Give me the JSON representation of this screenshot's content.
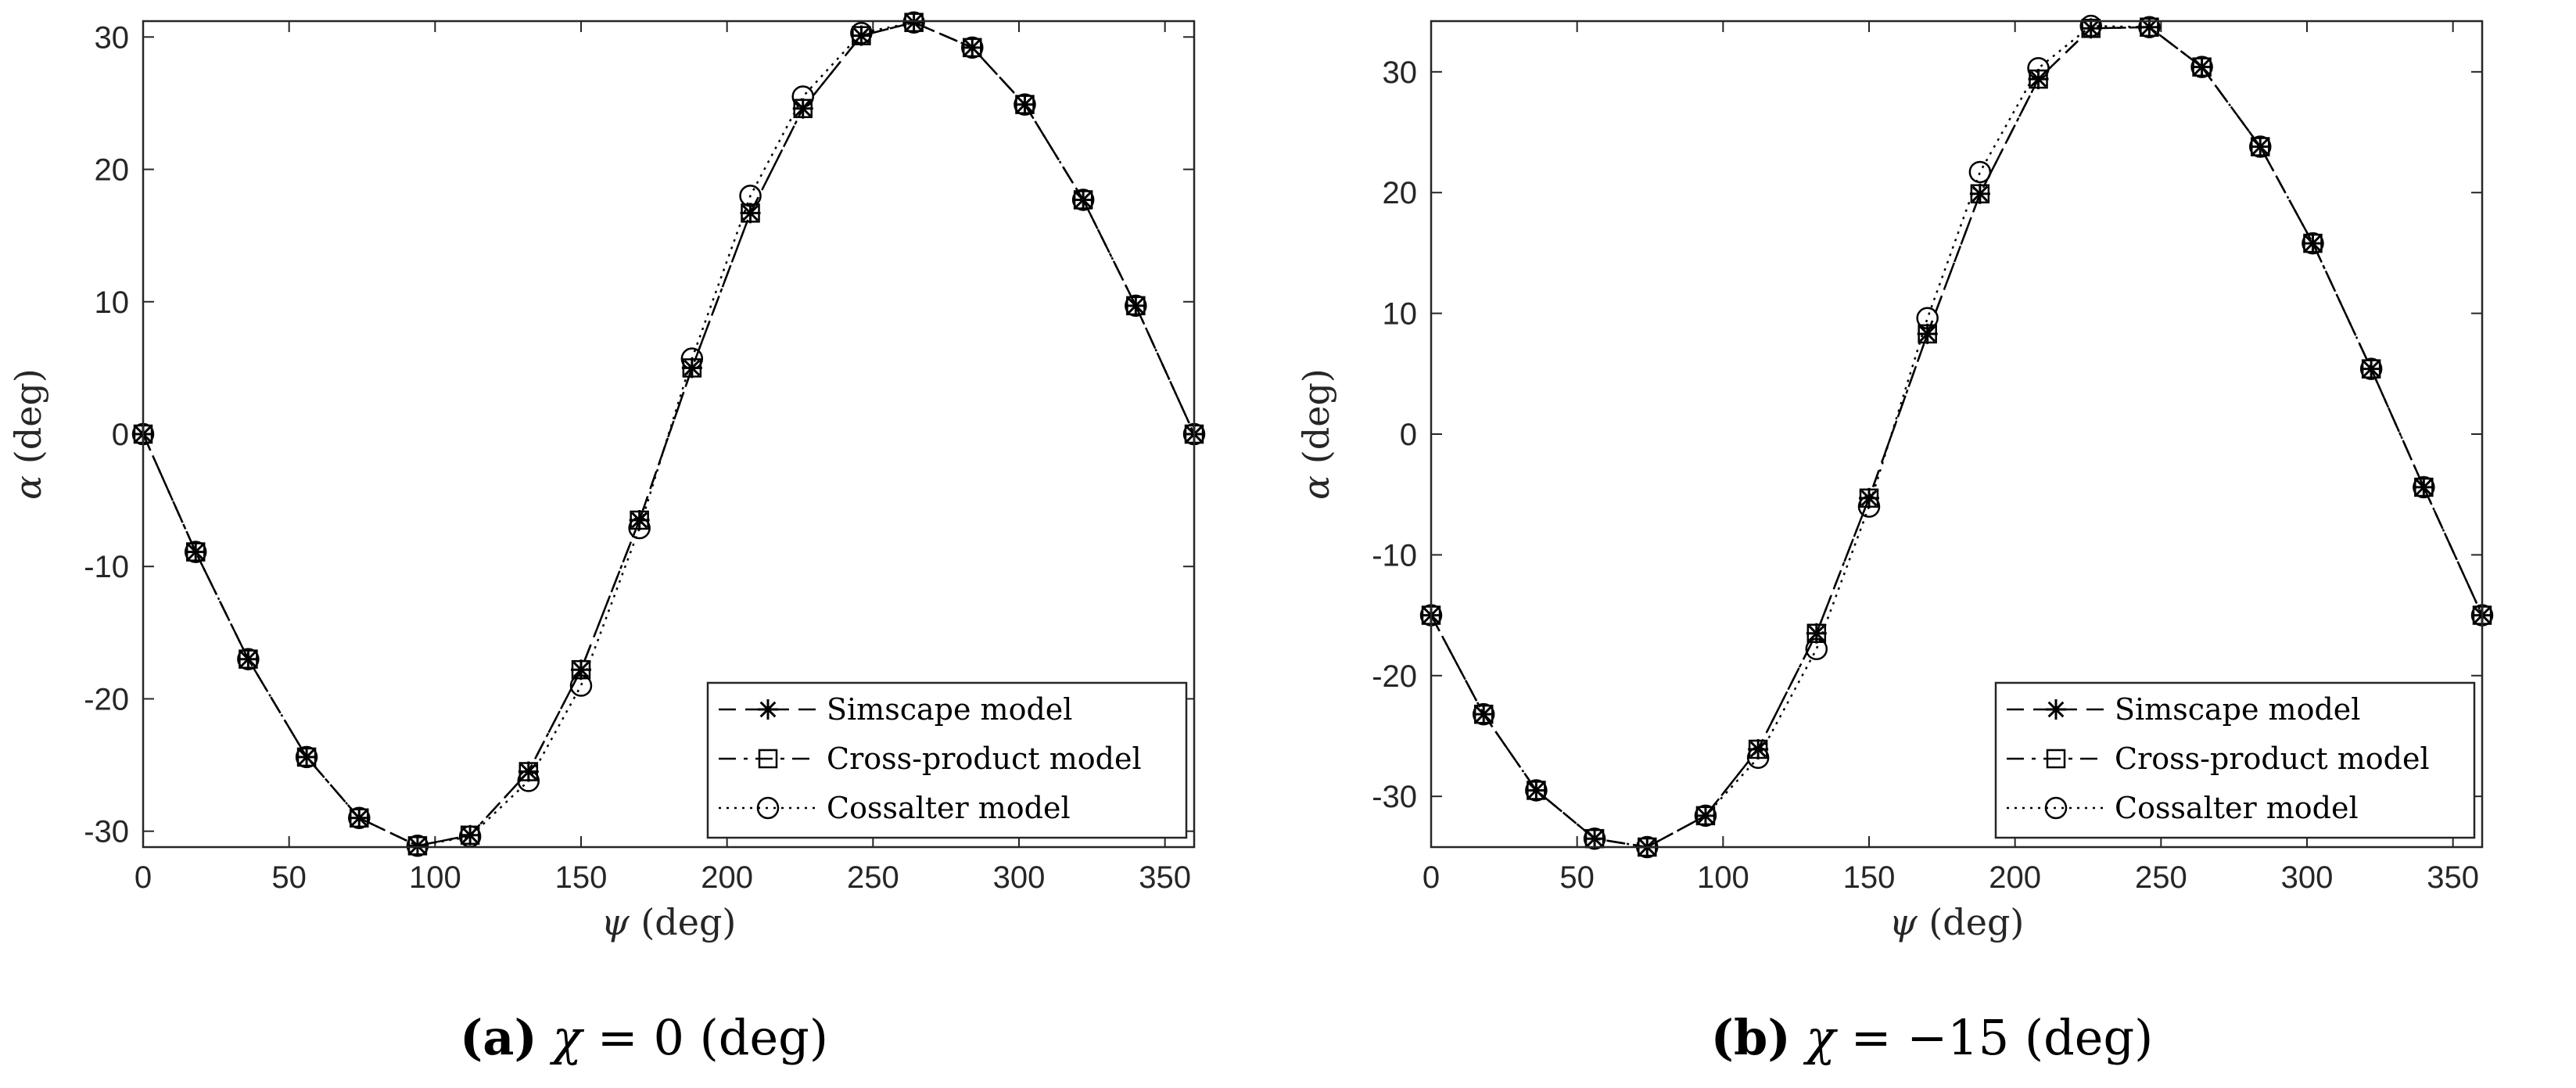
{
  "chart_data": [
    {
      "id": "a",
      "type": "line",
      "xlabel_symbol": "ψ",
      "xlabel_unit": "(deg)",
      "ylabel_symbol": "α",
      "ylabel_unit": "(deg)",
      "xlim": [
        0,
        360
      ],
      "ylim": [
        -31.2,
        31.2
      ],
      "xticks": [
        0,
        50,
        100,
        150,
        200,
        250,
        300,
        350
      ],
      "yticks": [
        -30,
        -20,
        -10,
        0,
        10,
        20,
        30
      ],
      "caption": {
        "letter": "(a)",
        "symbol": "χ",
        "equation": " = 0 ",
        "unit": "(deg)"
      },
      "legend_position": "lower-right",
      "series": [
        {
          "name": "Simscape model",
          "line_style": "dash",
          "marker": "asterisk",
          "x": [
            0,
            18,
            36,
            56,
            74,
            94,
            112,
            132,
            150,
            170,
            188,
            208,
            226,
            246,
            264,
            284,
            302,
            322,
            340,
            360
          ],
          "y": [
            0,
            -8.9,
            -17,
            -24.4,
            -29,
            -31.1,
            -30.3,
            -25.5,
            -17.8,
            -6.5,
            5,
            16.7,
            24.6,
            30.1,
            31.1,
            29.2,
            24.9,
            17.7,
            9.7,
            0
          ]
        },
        {
          "name": "Cross-product model",
          "line_style": "dashdot",
          "marker": "square",
          "x": [
            0,
            18,
            36,
            56,
            74,
            94,
            112,
            132,
            150,
            170,
            188,
            208,
            226,
            246,
            264,
            284,
            302,
            322,
            340,
            360
          ],
          "y": [
            0,
            -8.9,
            -17,
            -24.4,
            -29,
            -31.1,
            -30.3,
            -25.5,
            -17.8,
            -6.5,
            5,
            16.7,
            24.6,
            30.1,
            31.1,
            29.2,
            24.9,
            17.7,
            9.7,
            0
          ]
        },
        {
          "name": "Cossalter model",
          "line_style": "dot",
          "marker": "circle",
          "x": [
            0,
            18,
            36,
            56,
            74,
            94,
            112,
            132,
            150,
            170,
            188,
            208,
            226,
            246,
            264,
            284,
            302,
            322,
            340,
            360
          ],
          "y": [
            0,
            -8.9,
            -17,
            -24.4,
            -29,
            -31.1,
            -30.4,
            -26.2,
            -19,
            -7.1,
            5.7,
            18,
            25.5,
            30.3,
            31.1,
            29.2,
            24.9,
            17.7,
            9.7,
            0
          ]
        }
      ]
    },
    {
      "id": "b",
      "type": "line",
      "xlabel_symbol": "ψ",
      "xlabel_unit": "(deg)",
      "ylabel_symbol": "α",
      "ylabel_unit": "(deg)",
      "xlim": [
        0,
        360
      ],
      "ylim": [
        -34.2,
        34.2
      ],
      "xticks": [
        0,
        50,
        100,
        150,
        200,
        250,
        300,
        350
      ],
      "yticks": [
        -30,
        -20,
        -10,
        0,
        10,
        20,
        30
      ],
      "caption": {
        "letter": "(b)",
        "symbol": "χ",
        "equation": " = −15 ",
        "unit": "(deg)"
      },
      "legend_position": "lower-right",
      "series": [
        {
          "name": "Simscape model",
          "line_style": "dash",
          "marker": "asterisk",
          "x": [
            0,
            18,
            36,
            56,
            74,
            94,
            112,
            132,
            150,
            170,
            188,
            208,
            226,
            246,
            264,
            284,
            302,
            322,
            340,
            360
          ],
          "y": [
            -15,
            -23.2,
            -29.5,
            -33.5,
            -34.2,
            -31.6,
            -26.1,
            -16.5,
            -5.3,
            8.3,
            19.9,
            29.4,
            33.6,
            33.7,
            30.4,
            23.8,
            15.8,
            5.4,
            -4.4,
            -15
          ]
        },
        {
          "name": "Cross-product model",
          "line_style": "dashdot",
          "marker": "square",
          "x": [
            0,
            18,
            36,
            56,
            74,
            94,
            112,
            132,
            150,
            170,
            188,
            208,
            226,
            246,
            264,
            284,
            302,
            322,
            340,
            360
          ],
          "y": [
            -15,
            -23.2,
            -29.5,
            -33.5,
            -34.2,
            -31.6,
            -26.1,
            -16.5,
            -5.3,
            8.3,
            19.9,
            29.4,
            33.6,
            33.7,
            30.4,
            23.8,
            15.8,
            5.4,
            -4.4,
            -15
          ]
        },
        {
          "name": "Cossalter model",
          "line_style": "dot",
          "marker": "circle",
          "x": [
            0,
            18,
            36,
            56,
            74,
            94,
            112,
            132,
            150,
            170,
            188,
            208,
            226,
            246,
            264,
            284,
            302,
            322,
            340,
            360
          ],
          "y": [
            -15,
            -23.2,
            -29.5,
            -33.5,
            -34.2,
            -31.6,
            -26.8,
            -17.8,
            -6,
            9.6,
            21.7,
            30.3,
            33.8,
            33.7,
            30.4,
            23.8,
            15.8,
            5.4,
            -4.4,
            -15
          ]
        }
      ]
    }
  ]
}
